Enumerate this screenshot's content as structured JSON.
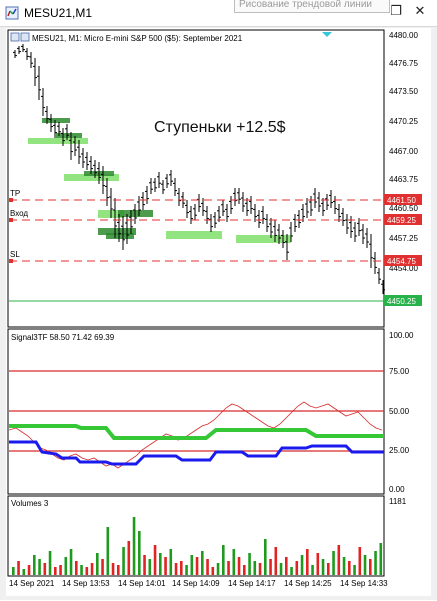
{
  "window": {
    "title": "MESU21,M1",
    "tooltip": "Рисование трендовой линии",
    "restore_glyph": "❐",
    "close_glyph": "✕"
  },
  "main_chart": {
    "header": "MESU21, M1:  Micro E-mini S&P 500 ($5): September 2021",
    "annotation": "Ступеньки +12.5$",
    "price_labels": [
      "4480.00",
      "4476.75",
      "4473.50",
      "4470.25",
      "4467.00",
      "4463.75",
      "4460.50",
      "4457.25",
      "4454.00"
    ],
    "level_tp": {
      "name": "TP",
      "value": "4461.50"
    },
    "level_entry": {
      "name": "Вход",
      "value": "4459.25"
    },
    "level_sl": {
      "name": "SL",
      "value": "4454.75"
    },
    "bid_label": "4450.25",
    "colors": {
      "level": "#e03030",
      "bid": "#29b24a",
      "zone": "#7fdf6a",
      "zone_dark": "#2e8b2e"
    }
  },
  "indicator": {
    "header": "Signal3TF 58.50 71.42 69.39",
    "labels": [
      "100.00",
      "75.00",
      "50.00",
      "25.00",
      "0.00"
    ],
    "colors": {
      "thin": "#d62a2a",
      "green": "#36c736",
      "blue": "#1a1aef"
    }
  },
  "volumes": {
    "header": "Volumes 3",
    "max_label": "1181",
    "colors": {
      "up": "#1f9a1f",
      "down": "#e02424"
    }
  },
  "time_axis": [
    "14 Sep 2021",
    "14 Sep 13:53",
    "14 Sep 14:01",
    "14 Sep 14:09",
    "14 Sep 14:17",
    "14 Sep 14:25",
    "14 Sep 14:33"
  ]
}
